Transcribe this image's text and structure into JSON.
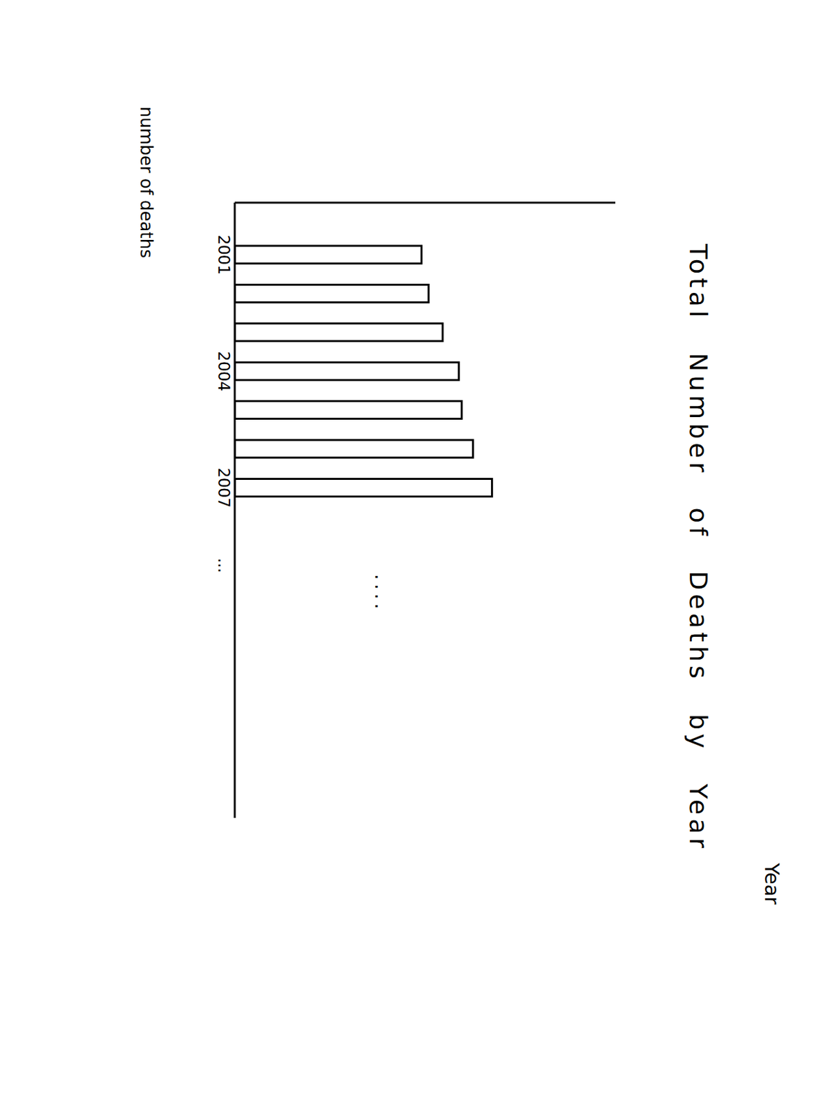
{
  "chart_data": {
    "type": "bar",
    "title": "Total Number of Deaths by Year",
    "x_label": "Year",
    "y_label": "number of deaths",
    "categories": [
      "2001",
      null,
      null,
      "2004",
      null,
      null,
      "2007",
      null,
      "...",
      null,
      null,
      null,
      null,
      null,
      null
    ],
    "values": [
      265,
      275,
      295,
      318,
      322,
      338,
      365,
      null,
      null,
      null,
      null,
      null,
      null,
      null,
      null
    ],
    "color": "#ffffff",
    "ylim": [
      0,
      540
    ],
    "yticks": [],
    "tick_labels": "x",
    "annotations": [
      "...."
    ]
  }
}
